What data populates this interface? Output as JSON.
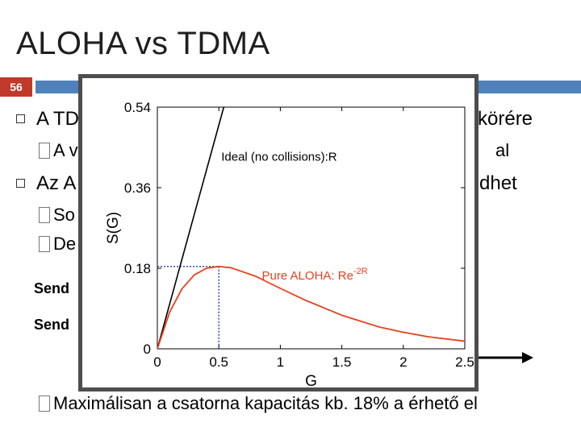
{
  "slide": {
    "title": "ALOHA vs TDMA",
    "number": "56",
    "bullets": [
      {
        "text": "A TD",
        "tail": "körére"
      },
      {
        "sub": "A v",
        "tail": "al"
      },
      {
        "text": "Az A",
        "tail": "dhet"
      }
    ],
    "sub_bullets": [
      "So",
      "De"
    ],
    "send_labels": [
      "Send",
      "Send"
    ],
    "footer_bullet": "Maximálisan a csatorna kapacitás kb. 18% a érhető el"
  },
  "colors": {
    "accent": "#4f81bd",
    "number_bg": "#c0392b",
    "ideal": "#000000",
    "aloha": "#e8401c",
    "guide": "#1a3faa"
  },
  "chart_data": {
    "type": "line",
    "xlabel": "G",
    "ylabel": "S(G)",
    "xlim": [
      0,
      2.5
    ],
    "ylim": [
      0,
      0.54
    ],
    "xticks": [
      "0",
      "0.5",
      "1",
      "1.5",
      "2",
      "2.5"
    ],
    "yticks": [
      "0",
      "0.18",
      "0.36",
      "0.54"
    ],
    "series": [
      {
        "name": "Ideal (no collisions):R",
        "x": [
          0,
          0.54
        ],
        "y": [
          0,
          0.54
        ]
      },
      {
        "name": "Pure ALOHA: Re",
        "superscript": "-2R",
        "x": [
          0,
          0.1,
          0.2,
          0.3,
          0.4,
          0.5,
          0.6,
          0.8,
          1.0,
          1.2,
          1.5,
          1.8,
          2.0,
          2.2,
          2.5
        ],
        "y": [
          0,
          0.082,
          0.134,
          0.165,
          0.18,
          0.184,
          0.181,
          0.162,
          0.135,
          0.109,
          0.075,
          0.049,
          0.037,
          0.027,
          0.017
        ]
      }
    ],
    "annotation": {
      "x": 0.5,
      "y": 0.184
    }
  }
}
